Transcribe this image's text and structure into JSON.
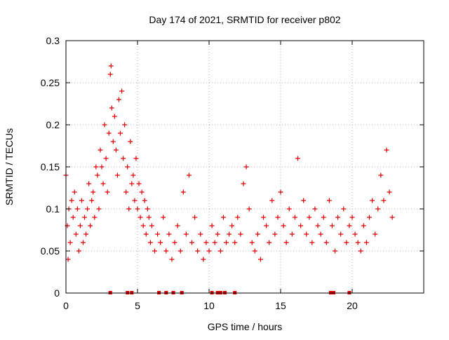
{
  "chart_data": {
    "type": "scatter",
    "title": "Day 174 of 2021, SRMTID for receiver p802",
    "xlabel": "GPS time / hours",
    "ylabel": "SRMTID / TECUs",
    "xlim": [
      0,
      25
    ],
    "ylim": [
      0,
      0.3
    ],
    "x_ticks": [
      0,
      5,
      10,
      15,
      20
    ],
    "x_tick_labels": [
      "0",
      "5",
      "10",
      "15",
      "20"
    ],
    "y_ticks": [
      0,
      0.05,
      0.1,
      0.15,
      0.2,
      0.25,
      0.3
    ],
    "y_tick_labels": [
      "0",
      "0.05",
      "0.1",
      "0.15",
      "0.2",
      "0.25",
      "0.3"
    ],
    "grid": true,
    "marker": "+",
    "colors": {
      "series": "#dd0000",
      "grid": "#b0b0b0",
      "axes": "#000000"
    },
    "series": [
      {
        "name": "SRMTID",
        "x": [
          0.0,
          0.1,
          0.15,
          0.2,
          0.3,
          0.4,
          0.5,
          0.6,
          0.7,
          0.8,
          0.9,
          1.0,
          1.1,
          1.2,
          1.3,
          1.4,
          1.5,
          1.6,
          1.7,
          1.8,
          1.9,
          2.0,
          2.1,
          2.2,
          2.3,
          2.4,
          2.5,
          2.6,
          2.7,
          2.8,
          2.9,
          3.0,
          3.1,
          3.15,
          3.2,
          3.3,
          3.4,
          3.5,
          3.6,
          3.7,
          3.8,
          3.9,
          4.0,
          4.1,
          4.2,
          4.3,
          4.4,
          4.5,
          4.6,
          4.7,
          4.8,
          4.9,
          5.0,
          5.1,
          5.2,
          5.3,
          5.4,
          5.5,
          5.6,
          5.7,
          5.8,
          5.9,
          6.0,
          6.2,
          6.4,
          6.6,
          6.8,
          7.0,
          7.2,
          7.4,
          7.6,
          7.8,
          8.0,
          8.2,
          8.4,
          8.6,
          8.8,
          9.0,
          9.2,
          9.4,
          9.6,
          9.8,
          10.0,
          10.2,
          10.4,
          10.6,
          10.8,
          11.0,
          11.2,
          11.4,
          11.6,
          11.8,
          12.0,
          12.2,
          12.4,
          12.6,
          12.8,
          13.0,
          13.2,
          13.4,
          13.6,
          13.8,
          14.0,
          14.2,
          14.4,
          14.6,
          14.8,
          15.0,
          15.2,
          15.4,
          15.6,
          15.8,
          16.0,
          16.2,
          16.4,
          16.6,
          16.8,
          17.0,
          17.2,
          17.4,
          17.6,
          17.8,
          18.0,
          18.2,
          18.4,
          18.6,
          18.8,
          19.0,
          19.2,
          19.4,
          19.6,
          19.8,
          20.0,
          20.2,
          20.4,
          20.6,
          20.8,
          21.0,
          21.2,
          21.4,
          21.6,
          21.8,
          22.0,
          22.2,
          22.4,
          22.6,
          22.8
        ],
        "values": [
          0.14,
          0.08,
          0.04,
          0.1,
          0.06,
          0.11,
          0.09,
          0.12,
          0.07,
          0.1,
          0.05,
          0.08,
          0.11,
          0.06,
          0.09,
          0.07,
          0.1,
          0.13,
          0.08,
          0.11,
          0.12,
          0.09,
          0.15,
          0.14,
          0.1,
          0.17,
          0.15,
          0.13,
          0.2,
          0.16,
          0.12,
          0.19,
          0.26,
          0.27,
          0.22,
          0.18,
          0.21,
          0.17,
          0.14,
          0.23,
          0.19,
          0.24,
          0.16,
          0.2,
          0.12,
          0.15,
          0.1,
          0.18,
          0.13,
          0.14,
          0.11,
          0.16,
          0.1,
          0.13,
          0.09,
          0.12,
          0.08,
          0.11,
          0.07,
          0.1,
          0.09,
          0.06,
          0.08,
          0.05,
          0.07,
          0.06,
          0.09,
          0.05,
          0.07,
          0.04,
          0.06,
          0.08,
          0.05,
          0.12,
          0.07,
          0.14,
          0.06,
          0.09,
          0.05,
          0.07,
          0.04,
          0.06,
          0.05,
          0.08,
          0.06,
          0.07,
          0.05,
          0.09,
          0.06,
          0.07,
          0.08,
          0.06,
          0.09,
          0.07,
          0.13,
          0.15,
          0.1,
          0.06,
          0.05,
          0.07,
          0.04,
          0.09,
          0.08,
          0.06,
          0.11,
          0.07,
          0.09,
          0.12,
          0.08,
          0.06,
          0.1,
          0.07,
          0.09,
          0.16,
          0.08,
          0.11,
          0.07,
          0.09,
          0.06,
          0.1,
          0.08,
          0.07,
          0.09,
          0.06,
          0.11,
          0.08,
          0.05,
          0.09,
          0.07,
          0.1,
          0.06,
          0.08,
          0.09,
          0.07,
          0.06,
          0.05,
          0.08,
          0.06,
          0.09,
          0.11,
          0.07,
          0.1,
          0.14,
          0.11,
          0.17,
          0.12,
          0.09
        ],
        "flags_x": [
          3.1,
          4.3,
          4.6,
          6.5,
          7.0,
          7.5,
          8.1,
          10.2,
          10.6,
          10.8,
          11.1,
          11.8,
          18.5,
          18.6,
          18.7,
          19.8
        ]
      }
    ]
  }
}
